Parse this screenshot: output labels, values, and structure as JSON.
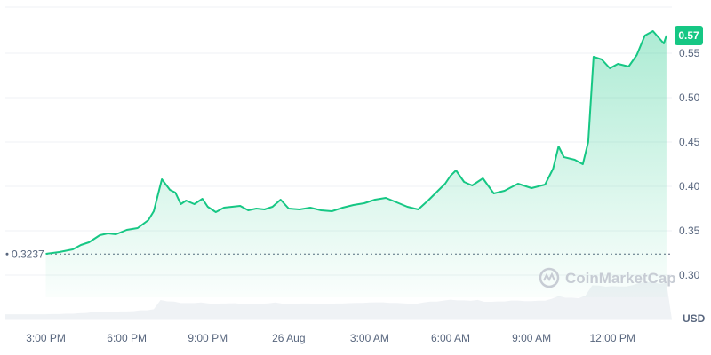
{
  "chart_data": {
    "type": "area",
    "unit_label": "USD",
    "ylim": [
      0.3,
      0.6
    ],
    "y_ticks": [
      {
        "value": 0.3,
        "label": "0.30"
      },
      {
        "value": 0.35,
        "label": "0.35"
      },
      {
        "value": 0.4,
        "label": "0.40"
      },
      {
        "value": 0.45,
        "label": "0.45"
      },
      {
        "value": 0.5,
        "label": "0.50"
      },
      {
        "value": 0.55,
        "label": "0.55"
      }
    ],
    "x_ticks": [
      {
        "hour": 15,
        "label": "3:00 PM"
      },
      {
        "hour": 18,
        "label": "6:00 PM"
      },
      {
        "hour": 21,
        "label": "9:00 PM"
      },
      {
        "hour": 24,
        "label": "26 Aug"
      },
      {
        "hour": 27,
        "label": "3:00 AM"
      },
      {
        "hour": 30,
        "label": "6:00 AM"
      },
      {
        "hour": 33,
        "label": "9:00 AM"
      },
      {
        "hour": 36,
        "label": "12:00 PM"
      }
    ],
    "xlim": [
      13.5,
      38.2
    ],
    "grid": true,
    "reference_line": {
      "value": 0.3237,
      "label": "0.3237"
    },
    "current_price": {
      "value": 0.57,
      "label": "0.57"
    },
    "watermark": "CoinMarketCap",
    "colors": {
      "line": "#16c784",
      "badge": "#16c784",
      "grid": "#eff2f5",
      "text": "#58667e",
      "volume": "#eff2f5",
      "watermark": "#c7ccd4"
    },
    "series": [
      {
        "x": [
          15.0,
          15.5,
          16.0,
          16.3,
          16.6,
          17.0,
          17.3,
          17.6,
          18.0,
          18.4,
          18.8,
          19.0,
          19.3,
          19.6,
          19.8,
          20.0,
          20.2,
          20.5,
          20.8,
          21.0,
          21.3,
          21.6,
          21.9,
          22.2,
          22.5,
          22.8,
          23.1,
          23.4,
          23.7,
          24.0,
          24.4,
          24.8,
          25.2,
          25.6,
          26.0,
          26.4,
          26.8,
          27.2,
          27.6,
          28.0,
          28.4,
          28.8,
          29.2,
          29.5,
          29.8,
          30.0,
          30.2,
          30.5,
          30.8,
          31.2,
          31.6,
          32.0,
          32.5,
          33.0,
          33.5,
          33.8,
          34.0,
          34.2,
          34.6,
          34.9,
          35.1,
          35.3,
          35.6,
          35.9,
          36.2,
          36.6,
          36.9,
          37.2,
          37.5,
          37.7,
          37.9,
          38.0
        ],
        "y": [
          0.324,
          0.326,
          0.329,
          0.334,
          0.337,
          0.345,
          0.347,
          0.346,
          0.351,
          0.353,
          0.362,
          0.372,
          0.408,
          0.396,
          0.393,
          0.38,
          0.384,
          0.38,
          0.386,
          0.377,
          0.371,
          0.376,
          0.377,
          0.378,
          0.373,
          0.375,
          0.374,
          0.377,
          0.385,
          0.375,
          0.374,
          0.376,
          0.373,
          0.372,
          0.376,
          0.379,
          0.381,
          0.385,
          0.387,
          0.382,
          0.377,
          0.374,
          0.385,
          0.394,
          0.403,
          0.412,
          0.418,
          0.405,
          0.401,
          0.409,
          0.392,
          0.395,
          0.403,
          0.398,
          0.402,
          0.42,
          0.445,
          0.433,
          0.43,
          0.425,
          0.45,
          0.546,
          0.543,
          0.533,
          0.538,
          0.535,
          0.548,
          0.57,
          0.575,
          0.568,
          0.561,
          0.57
        ]
      }
    ]
  }
}
